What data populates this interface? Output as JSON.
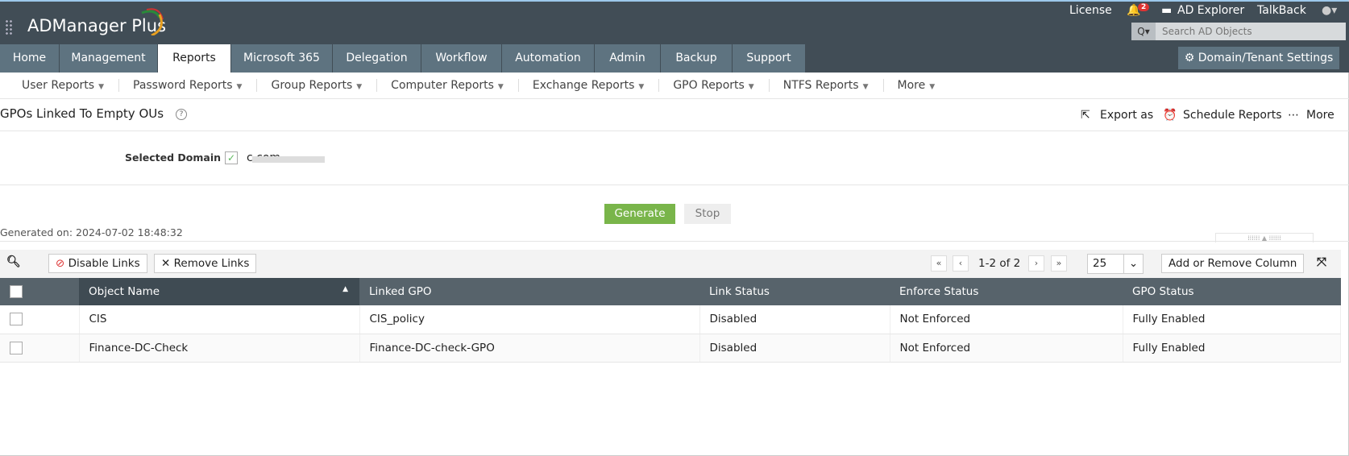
{
  "app": {
    "name": "ADManager Plus"
  },
  "topbar": {
    "license": "License",
    "notifications_count": "2",
    "ad_explorer": "AD Explorer",
    "talkback": "TalkBack",
    "search_placeholder": "Search AD Objects",
    "domain_settings": "Domain/Tenant Settings"
  },
  "tabs": [
    {
      "label": "Home"
    },
    {
      "label": "Management"
    },
    {
      "label": "Reports",
      "active": true
    },
    {
      "label": "Microsoft 365"
    },
    {
      "label": "Delegation"
    },
    {
      "label": "Workflow"
    },
    {
      "label": "Automation"
    },
    {
      "label": "Admin"
    },
    {
      "label": "Backup"
    },
    {
      "label": "Support"
    }
  ],
  "subnav": [
    {
      "label": "User Reports"
    },
    {
      "label": "Password Reports"
    },
    {
      "label": "Group Reports"
    },
    {
      "label": "Computer Reports"
    },
    {
      "label": "Exchange Reports"
    },
    {
      "label": "GPO Reports"
    },
    {
      "label": "NTFS Reports"
    },
    {
      "label": "More"
    }
  ],
  "report": {
    "title": "GPOs Linked To Empty OUs",
    "export": "Export as",
    "schedule": "Schedule Reports",
    "more": "More",
    "domain_label": "Selected Domain",
    "domain_value": "c.com",
    "generate": "Generate",
    "stop": "Stop",
    "generated_on": "Generated on: 2024-07-02 18:48:32"
  },
  "toolbar": {
    "disable_links": "Disable Links",
    "remove_links": "Remove Links",
    "page_info": "1-2 of 2",
    "page_size": "25",
    "add_remove_column": "Add or Remove Column"
  },
  "table": {
    "columns": [
      "Object Name",
      "Linked GPO",
      "Link Status",
      "Enforce Status",
      "GPO Status"
    ],
    "rows": [
      [
        "CIS",
        "CIS_policy",
        "Disabled",
        "Not Enforced",
        "Fully Enabled"
      ],
      [
        "Finance-DC-Check",
        "Finance-DC-check-GPO",
        "Disabled",
        "Not Enforced",
        "Fully Enabled"
      ]
    ]
  },
  "colors": {
    "header_bg": "#414d56",
    "tab_bg": "#5e7380",
    "generate": "#79b54a",
    "table_header": "#57636b"
  }
}
